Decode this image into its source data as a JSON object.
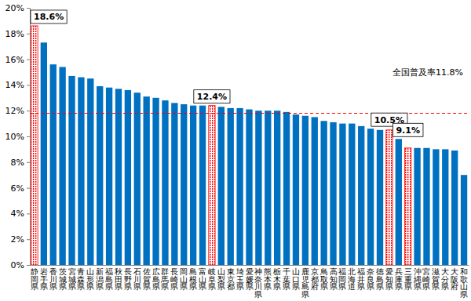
{
  "chart_data": {
    "type": "bar",
    "categories": [
      "静岡県",
      "岩手県",
      "香川県",
      "茨城県",
      "宮城県",
      "青森県",
      "山形県",
      "新潟県",
      "福島県",
      "秋田県",
      "長野県",
      "石川県",
      "佐賀県",
      "広島県",
      "群馬県",
      "長崎県",
      "岡山県",
      "島根県",
      "富山県",
      "岐阜県",
      "山梨県",
      "東京都",
      "埼玉県",
      "愛媛県",
      "神奈川県",
      "熊本県",
      "栃木県",
      "千葉県",
      "山口県",
      "鹿児島県",
      "京都府",
      "鳥取県",
      "高知県",
      "福岡県",
      "北海道",
      "福井県",
      "奈良県",
      "徳島県",
      "愛知県",
      "兵庫県",
      "三重県",
      "沖縄県",
      "宮崎県",
      "滋賀県",
      "大分県",
      "大阪府",
      "和歌山県"
    ],
    "values": [
      18.6,
      17.3,
      15.6,
      15.4,
      14.7,
      14.6,
      14.5,
      13.9,
      13.8,
      13.7,
      13.6,
      13.4,
      13.1,
      13.0,
      12.8,
      12.6,
      12.5,
      12.4,
      12.4,
      12.4,
      12.3,
      12.2,
      12.2,
      12.1,
      12.0,
      12.0,
      12.0,
      11.9,
      11.7,
      11.6,
      11.5,
      11.2,
      11.1,
      11.0,
      11.0,
      10.8,
      10.6,
      10.5,
      10.5,
      9.8,
      9.1,
      9.1,
      9.1,
      9.0,
      9.0,
      8.9,
      7.0
    ],
    "value_labels": [
      "18.6%",
      null,
      null,
      null,
      null,
      null,
      null,
      null,
      null,
      null,
      null,
      null,
      null,
      null,
      null,
      null,
      null,
      null,
      null,
      "12.4%",
      null,
      null,
      null,
      null,
      null,
      null,
      null,
      null,
      null,
      null,
      null,
      null,
      null,
      null,
      null,
      null,
      null,
      null,
      "10.5%",
      null,
      "9.1%",
      null,
      null,
      null,
      null,
      null,
      null
    ],
    "color": "#0070c0",
    "colors": [
      "#ff0000",
      "#0070c0",
      "#0070c0",
      "#0070c0",
      "#0070c0",
      "#0070c0",
      "#0070c0",
      "#0070c0",
      "#0070c0",
      "#0070c0",
      "#0070c0",
      "#0070c0",
      "#0070c0",
      "#0070c0",
      "#0070c0",
      "#0070c0",
      "#0070c0",
      "#0070c0",
      "#0070c0",
      "#ff0000",
      "#0070c0",
      "#0070c0",
      "#0070c0",
      "#0070c0",
      "#0070c0",
      "#0070c0",
      "#0070c0",
      "#0070c0",
      "#0070c0",
      "#0070c0",
      "#0070c0",
      "#0070c0",
      "#0070c0",
      "#0070c0",
      "#0070c0",
      "#0070c0",
      "#0070c0",
      "#0070c0",
      "#ff0000",
      "#0070c0",
      "#ff0000",
      "#0070c0",
      "#0070c0",
      "#0070c0",
      "#0070c0",
      "#0070c0",
      "#0070c0"
    ],
    "reference_line": {
      "value": 11.8,
      "text": "全国普及率11.8%",
      "color": "#ff0000"
    },
    "ylim": [
      0,
      20
    ],
    "yticks": [
      {
        "value": 0,
        "label": "0%"
      },
      {
        "value": 2,
        "label": "2%"
      },
      {
        "value": 4,
        "label": "4%"
      },
      {
        "value": 6,
        "label": "6%"
      },
      {
        "value": 8,
        "label": "8%"
      },
      {
        "value": 10,
        "label": "10%"
      },
      {
        "value": 12,
        "label": "12%"
      },
      {
        "value": 14,
        "label": "14%"
      },
      {
        "value": 16,
        "label": "16%"
      },
      {
        "value": 18,
        "label": "18%"
      },
      {
        "value": 20,
        "label": "20%"
      }
    ],
    "grid": false
  }
}
